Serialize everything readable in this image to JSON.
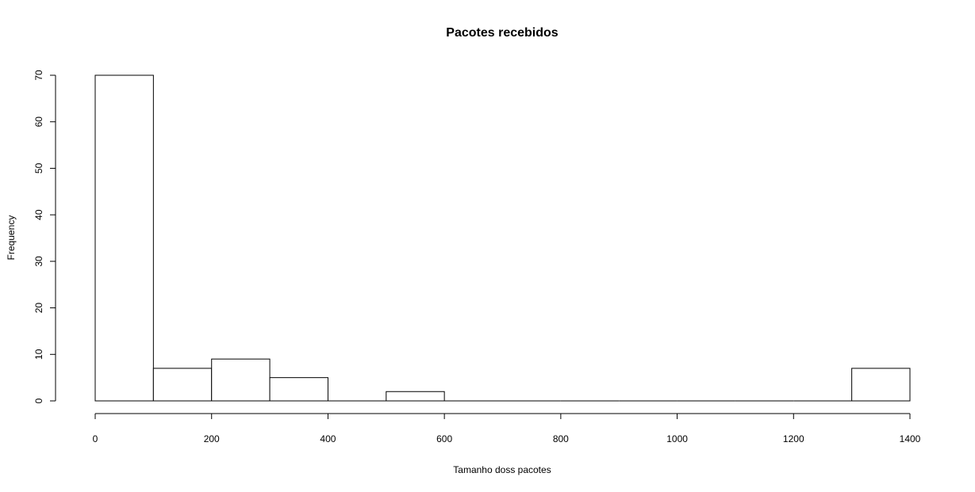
{
  "chart_data": {
    "type": "bar",
    "title": "Pacotes recebidos",
    "xlabel": "Tamanho doss pacotes",
    "ylabel": "Frequency",
    "bins": [
      {
        "from": 0,
        "to": 100,
        "count": 70
      },
      {
        "from": 100,
        "to": 200,
        "count": 7
      },
      {
        "from": 200,
        "to": 300,
        "count": 9
      },
      {
        "from": 300,
        "to": 400,
        "count": 5
      },
      {
        "from": 400,
        "to": 500,
        "count": 0
      },
      {
        "from": 500,
        "to": 600,
        "count": 2
      },
      {
        "from": 600,
        "to": 700,
        "count": 0
      },
      {
        "from": 700,
        "to": 800,
        "count": 0
      },
      {
        "from": 800,
        "to": 900,
        "count": 0
      },
      {
        "from": 900,
        "to": 1000,
        "count": 0
      },
      {
        "from": 1000,
        "to": 1100,
        "count": 0
      },
      {
        "from": 1100,
        "to": 1200,
        "count": 0
      },
      {
        "from": 1200,
        "to": 1300,
        "count": 0
      },
      {
        "from": 1300,
        "to": 1400,
        "count": 7
      }
    ],
    "xlim": [
      0,
      1400
    ],
    "ylim": [
      0,
      70
    ],
    "xticks": [
      0,
      200,
      400,
      600,
      800,
      1000,
      1200,
      1400
    ],
    "yticks": [
      0,
      10,
      20,
      30,
      40,
      50,
      60,
      70
    ],
    "grid": false,
    "bar_fill": "#ffffff",
    "bar_stroke": "#000000"
  }
}
